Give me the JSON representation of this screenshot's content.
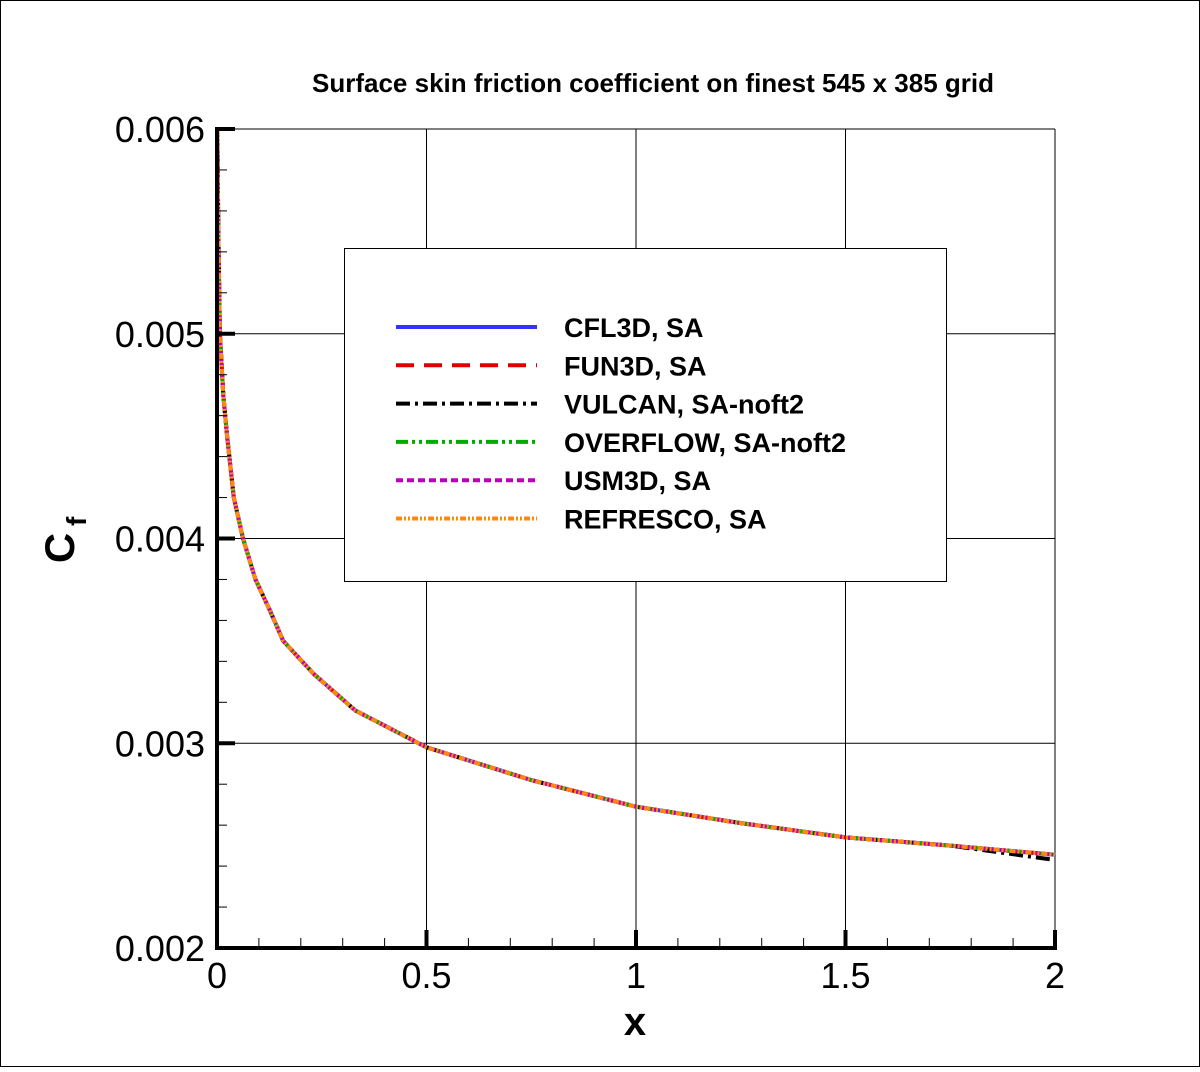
{
  "chart_data": {
    "type": "line",
    "title": "Surface skin friction coefficient on finest 545 x 385 grid",
    "xlabel": "x",
    "ylabel_main": "C",
    "ylabel_sub": "f",
    "xlim": [
      0,
      2
    ],
    "ylim": [
      0.002,
      0.006
    ],
    "xticks": [
      "0",
      "0.5",
      "1",
      "1.5",
      "2"
    ],
    "yticks": [
      "0.002",
      "0.003",
      "0.004",
      "0.005",
      "0.006"
    ],
    "grid": true,
    "legend_placement": "center",
    "x": [
      0.001,
      0.003,
      0.007,
      0.015,
      0.024,
      0.04,
      0.062,
      0.092,
      0.126,
      0.158,
      0.23,
      0.33,
      0.5,
      0.75,
      1.0,
      1.25,
      1.5,
      1.75,
      2.0
    ],
    "series": [
      {
        "name": "CFL3D, SA",
        "color": "#3333ff",
        "style": "solid",
        "values": [
          0.006,
          0.0055,
          0.005,
          0.0047,
          0.0045,
          0.0042,
          0.004,
          0.0038,
          0.00365,
          0.0035,
          0.00334,
          0.00316,
          0.00298,
          0.00282,
          0.00269,
          0.00261,
          0.00254,
          0.0025,
          0.002455
        ]
      },
      {
        "name": "FUN3D, SA",
        "color": "#dd0000",
        "style": "dashed",
        "values": [
          0.006,
          0.0055,
          0.005,
          0.0047,
          0.0045,
          0.0042,
          0.004,
          0.0038,
          0.00365,
          0.0035,
          0.00334,
          0.00316,
          0.00298,
          0.00282,
          0.00269,
          0.00261,
          0.00254,
          0.0025,
          0.002455
        ]
      },
      {
        "name": "VULCAN, SA-noft2",
        "color": "#000000",
        "style": "dash-dot",
        "values": [
          0.006,
          0.0055,
          0.005,
          0.0047,
          0.0045,
          0.0042,
          0.004,
          0.0038,
          0.00365,
          0.0035,
          0.00334,
          0.00316,
          0.00298,
          0.00282,
          0.00269,
          0.00261,
          0.00254,
          0.0025,
          0.00243
        ]
      },
      {
        "name": "OVERFLOW, SA-noft2",
        "color": "#00aa00",
        "style": "dash-dot-dot",
        "values": [
          0.006,
          0.0055,
          0.005,
          0.0047,
          0.0045,
          0.0042,
          0.004,
          0.0038,
          0.00365,
          0.0035,
          0.00334,
          0.00316,
          0.00298,
          0.00282,
          0.00269,
          0.00261,
          0.00254,
          0.0025,
          0.002455
        ]
      },
      {
        "name": "USM3D, SA",
        "color": "#bb00bb",
        "style": "short-dashed",
        "values": [
          0.006,
          0.0055,
          0.005,
          0.0047,
          0.0045,
          0.0042,
          0.004,
          0.0038,
          0.00365,
          0.0035,
          0.00334,
          0.00316,
          0.00298,
          0.00282,
          0.00269,
          0.00261,
          0.00254,
          0.0025,
          0.002455
        ]
      },
      {
        "name": "REFRESCO, SA",
        "color": "#ff8811",
        "style": "dash-dot-dot-dense",
        "values": [
          0.006,
          0.0055,
          0.005,
          0.0047,
          0.0045,
          0.0042,
          0.004,
          0.0038,
          0.00365,
          0.0035,
          0.00334,
          0.00316,
          0.00298,
          0.00282,
          0.00269,
          0.00261,
          0.00254,
          0.0025,
          0.002455
        ]
      }
    ]
  }
}
